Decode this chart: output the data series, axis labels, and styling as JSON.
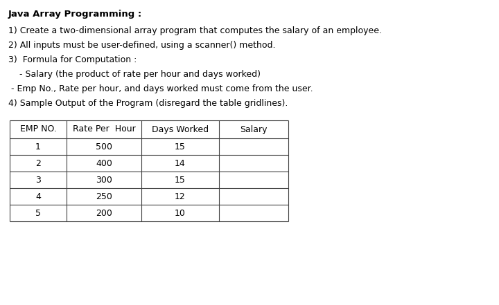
{
  "title": "Java Array Programming :",
  "lines": [
    "1) Create a two-dimensional array program that computes the salary of an employee.",
    "2) All inputs must be user-defined, using a scanner() method.",
    "3)  Formula for Computation :",
    "    - Salary (the product of rate per hour and days worked)",
    " - Emp No., Rate per hour, and days worked must come from the user.",
    "4) Sample Output of the Program (disregard the table gridlines)."
  ],
  "table_headers": [
    "EMP NO.",
    "Rate Per  Hour",
    "Days Worked",
    "Salary"
  ],
  "table_data": [
    [
      "1",
      "500",
      "15",
      ""
    ],
    [
      "2",
      "400",
      "14",
      ""
    ],
    [
      "3",
      "300",
      "15",
      ""
    ],
    [
      "4",
      "250",
      "12",
      ""
    ],
    [
      "5",
      "200",
      "10",
      ""
    ]
  ],
  "bg_color": "#ffffff",
  "text_color": "#000000",
  "font_size_title": 9.5,
  "font_size_body": 9,
  "font_size_table": 9
}
